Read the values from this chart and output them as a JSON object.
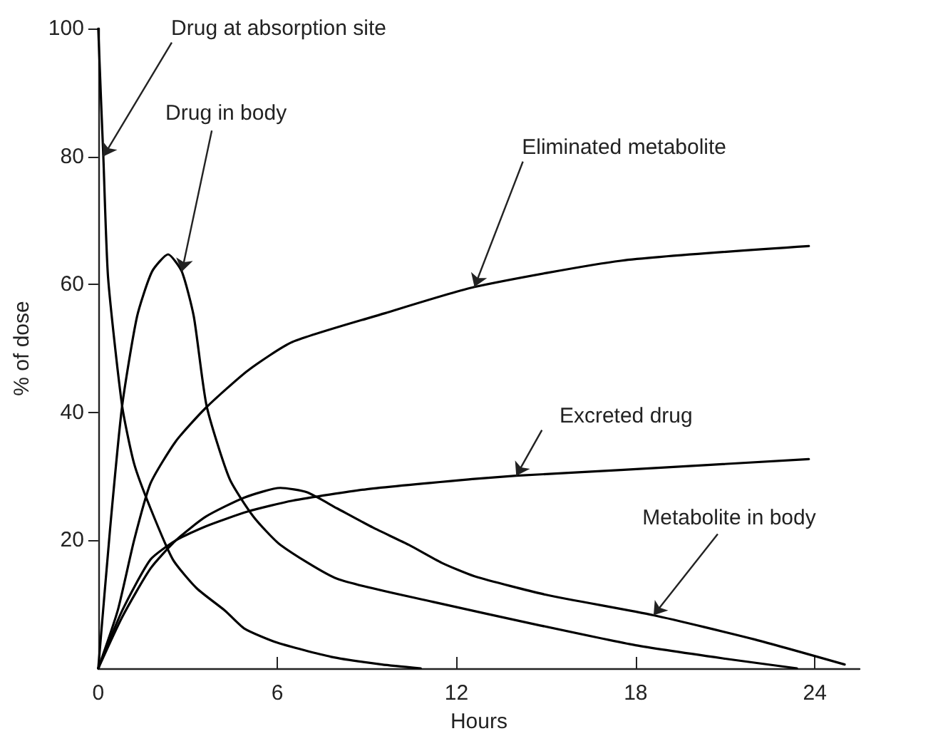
{
  "chart_data": {
    "type": "line",
    "xlabel": "Hours",
    "ylabel": "% of dose",
    "xlim": [
      0,
      25.5
    ],
    "ylim": [
      0,
      100
    ],
    "xticks": [
      0,
      6,
      12,
      18,
      24
    ],
    "yticks": [
      20,
      40,
      60,
      80,
      100
    ],
    "grid": false,
    "marker": "none",
    "series": [
      {
        "color": "#000000",
        "x": [
          0,
          0.1,
          0.17,
          0.33,
          0.8,
          1.2,
          1.75,
          2.5,
          3.3,
          4.25,
          4.9,
          6,
          7.8,
          9.5,
          10.8
        ],
        "values": [
          100,
          88,
          80,
          61,
          41,
          32,
          25,
          17,
          12.5,
          9,
          6.2,
          4,
          1.8,
          0.6,
          0
        ]
      },
      {
        "color": "#000000",
        "x": [
          0,
          0.4,
          0.8,
          1.3,
          1.8,
          2.34,
          2.8,
          3.2,
          3.63,
          4.4,
          5.2,
          6.1,
          8,
          11.2,
          14.8,
          18,
          21,
          23.4
        ],
        "values": [
          0,
          22,
          41,
          55,
          62,
          64.7,
          62,
          55,
          41,
          29.6,
          23.7,
          19.3,
          14,
          10.4,
          6.7,
          3.6,
          1.5,
          0
        ]
      },
      {
        "color": "#000000",
        "x": [
          0,
          0.8,
          1.75,
          2.6,
          3.6,
          4.9,
          6.1,
          7,
          8,
          9.2,
          10.4,
          11.5,
          12.6,
          15,
          18.6,
          22,
          25
        ],
        "values": [
          0,
          8,
          15.6,
          20,
          23.7,
          26.7,
          28.2,
          27.5,
          25,
          22,
          19.3,
          16.5,
          14.4,
          11.5,
          8.3,
          4.5,
          0.6
        ]
      },
      {
        "color": "#000000",
        "x": [
          0,
          0.8,
          1.75,
          2.6,
          3.6,
          5,
          6.5,
          9,
          12.6,
          14,
          17.5,
          23.8
        ],
        "values": [
          0,
          9,
          17,
          20,
          22.2,
          24.5,
          26.2,
          28,
          29.6,
          30.1,
          31,
          32.7
        ]
      },
      {
        "color": "#000000",
        "x": [
          0,
          0.65,
          1.2,
          1.75,
          2.6,
          3.6,
          5,
          6.5,
          9.6,
          12.6,
          17.5,
          23.8
        ],
        "values": [
          0,
          9,
          20,
          28.9,
          35.5,
          40.7,
          46.5,
          51,
          55.5,
          59.6,
          63.7,
          66
        ]
      }
    ],
    "annotations": [
      {
        "text": "Drug at absorption site",
        "x": 0.17,
        "y": 80
      },
      {
        "text": "Drug in body",
        "x": 2.8,
        "y": 62
      },
      {
        "text": "Eliminated metabolite",
        "x": 12.6,
        "y": 59.6
      },
      {
        "text": "Excreted drug",
        "x": 14,
        "y": 30.1
      },
      {
        "text": "Metabolite in body",
        "x": 18.6,
        "y": 8.3
      }
    ]
  }
}
